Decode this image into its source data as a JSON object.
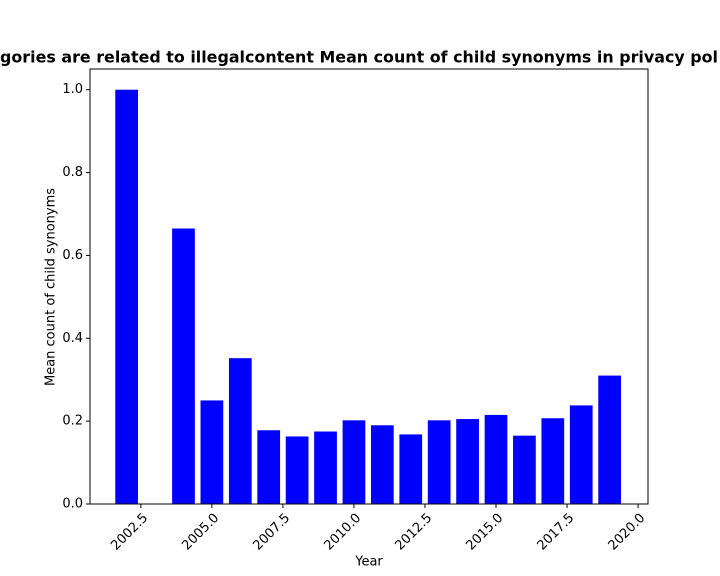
{
  "chart_data": {
    "type": "bar",
    "title": "gories are related to illegalcontent Mean count of child synonyms in privacy pol",
    "x_label": "Year",
    "y_label": "Mean count of child synonyms",
    "x": [
      2002,
      2004,
      2005,
      2006,
      2007,
      2008,
      2009,
      2010,
      2011,
      2012,
      2013,
      2014,
      2015,
      2016,
      2017,
      2018,
      2019
    ],
    "values": [
      1.0,
      0.665,
      0.25,
      0.352,
      0.178,
      0.163,
      0.175,
      0.202,
      0.19,
      0.168,
      0.202,
      0.205,
      0.215,
      0.165,
      0.207,
      0.238,
      0.31
    ],
    "color": "#0000ff",
    "bar_width": 0.8,
    "xlim": [
      2000.71,
      2020.35
    ],
    "xticks": [
      2002.5,
      {
        "value": 2005,
        "label": "2005.0"
      },
      2007.5,
      {
        "value": 2010,
        "label": "2010.0"
      },
      2012.5,
      {
        "value": 2015,
        "label": "2015.0"
      },
      2017.5,
      {
        "value": 2020,
        "label": "2020.0"
      }
    ],
    "ylim": [
      0,
      1.05
    ],
    "yticks": [
      {
        "value": 0,
        "label": "0.0"
      },
      0.2,
      0.4,
      0.6,
      0.8,
      {
        "value": 1,
        "label": "1.0"
      }
    ],
    "grid": false
  }
}
